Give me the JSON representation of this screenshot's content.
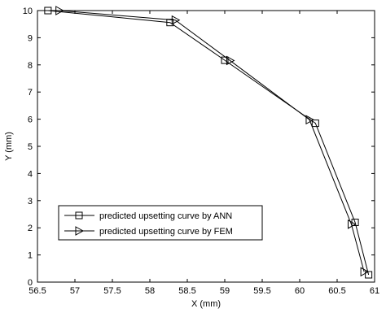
{
  "chart_data": {
    "type": "line",
    "title": "",
    "xlabel": "X (mm)",
    "ylabel": "Y (mm)",
    "xlim": [
      56.5,
      61
    ],
    "ylim": [
      0,
      10
    ],
    "xticks": [
      "56.5",
      "57",
      "57.5",
      "58",
      "58.5",
      "59",
      "59.5",
      "60",
      "60.5",
      "61"
    ],
    "yticks": [
      "0",
      "1",
      "2",
      "3",
      "4",
      "5",
      "6",
      "7",
      "8",
      "9",
      "10"
    ],
    "grid": false,
    "legend_position": "bottom-left",
    "series": [
      {
        "name": "predicted upsetting curve by ANN",
        "marker": "square",
        "color": "#000000",
        "x": [
          56.64,
          58.27,
          59.0,
          60.21,
          60.74,
          60.92
        ],
        "y": [
          10.0,
          9.56,
          8.17,
          5.85,
          2.2,
          0.27
        ]
      },
      {
        "name": "predicted upsetting curve by FEM",
        "marker": "triangle-right",
        "color": "#000000",
        "x": [
          56.79,
          58.34,
          59.07,
          60.13,
          60.69,
          60.86
        ],
        "y": [
          10.0,
          9.65,
          8.16,
          5.98,
          2.13,
          0.38
        ]
      }
    ]
  }
}
